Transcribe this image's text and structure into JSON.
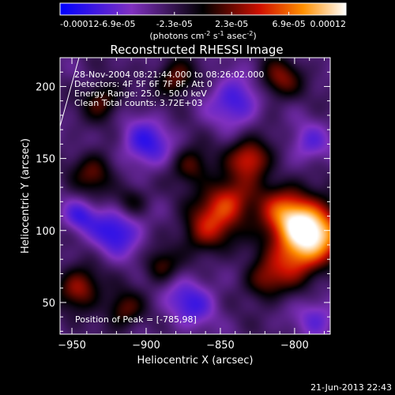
{
  "chart_data": {
    "type": "heatmap",
    "title": "Reconstructed RHESSI Image",
    "xlabel": "Heliocentric X (arcsec)",
    "ylabel": "Heliocentric Y (arcsec)",
    "xlim": [
      -958,
      -776
    ],
    "ylim": [
      28,
      220
    ],
    "x_ticks": [
      -950,
      -900,
      -850,
      -800
    ],
    "y_ticks": [
      50,
      100,
      150,
      200
    ],
    "colorbar": {
      "min": -0.00012,
      "max": 0.00012,
      "tick_labels": [
        "-0.00012",
        "-6.9e-05",
        "-2.3e-05",
        "2.3e-05",
        "6.9e-05",
        "0.00012"
      ],
      "label": "(photons cm",
      "label_sup1": "-2",
      "label_mid": " s",
      "label_sup2": "-1",
      "label_end": " asec",
      "label_sup3": "-2",
      "label_close": ")"
    },
    "annotations": [
      "28-Nov-2004 08:21:44.000 to 08:26:02.000",
      "Detectors: 4F 5F 6F 7F 8F, Att 0",
      "Energy Range: 25.0 - 50.0 keV",
      "Clean    Total counts: 3.72E+03"
    ],
    "peak_label": "Position of Peak = [-785,98]",
    "peak": [
      -785,
      98
    ],
    "sources": [
      {
        "x": -785,
        "y": 98,
        "sigma": 14,
        "amp": 1.0
      },
      {
        "x": -805,
        "y": 110,
        "sigma": 14,
        "amp": 0.85
      },
      {
        "x": -800,
        "y": 80,
        "sigma": 12,
        "amp": 0.6
      },
      {
        "x": -845,
        "y": 120,
        "sigma": 12,
        "amp": 0.7
      },
      {
        "x": -830,
        "y": 150,
        "sigma": 10,
        "amp": 0.7
      },
      {
        "x": -860,
        "y": 100,
        "sigma": 12,
        "amp": 0.55
      },
      {
        "x": -870,
        "y": 145,
        "sigma": 9,
        "amp": 0.45
      },
      {
        "x": -820,
        "y": 65,
        "sigma": 10,
        "amp": 0.45
      },
      {
        "x": -930,
        "y": 190,
        "sigma": 9,
        "amp": 0.45
      },
      {
        "x": -880,
        "y": 205,
        "sigma": 9,
        "amp": 0.5
      },
      {
        "x": -810,
        "y": 205,
        "sigma": 10,
        "amp": 0.5
      },
      {
        "x": -935,
        "y": 140,
        "sigma": 10,
        "amp": 0.45
      },
      {
        "x": -945,
        "y": 60,
        "sigma": 10,
        "amp": 0.6
      },
      {
        "x": -915,
        "y": 45,
        "sigma": 9,
        "amp": 0.45
      },
      {
        "x": -890,
        "y": 75,
        "sigma": 8,
        "amp": 0.4
      },
      {
        "x": -910,
        "y": 120,
        "sigma": 8,
        "amp": 0.35
      },
      {
        "x": -900,
        "y": 160,
        "sigma": 12,
        "amp": -0.5
      },
      {
        "x": -920,
        "y": 100,
        "sigma": 12,
        "amp": -0.55
      },
      {
        "x": -840,
        "y": 190,
        "sigma": 12,
        "amp": -0.5
      },
      {
        "x": -870,
        "y": 50,
        "sigma": 12,
        "amp": -0.45
      },
      {
        "x": -945,
        "y": 110,
        "sigma": 8,
        "amp": -0.4
      },
      {
        "x": -785,
        "y": 40,
        "sigma": 10,
        "amp": -0.35
      },
      {
        "x": -790,
        "y": 160,
        "sigma": 10,
        "amp": -0.35
      }
    ]
  },
  "footer_timestamp": "21-Jun-2013 22:43"
}
